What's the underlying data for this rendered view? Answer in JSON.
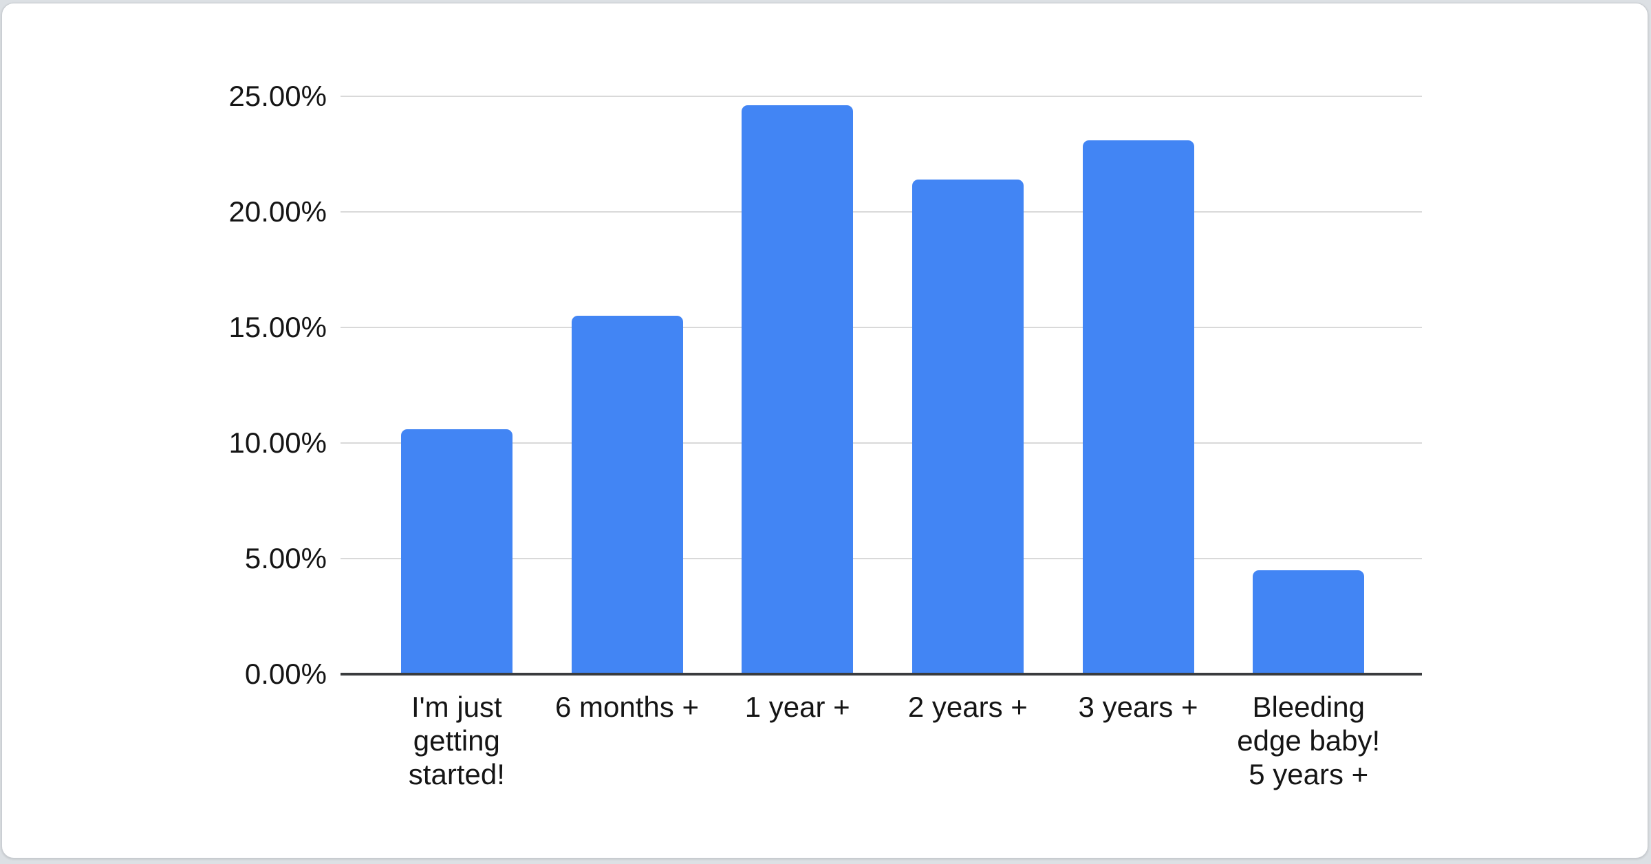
{
  "page": {
    "background_color": "#dce0e4",
    "card_background_color": "#ffffff"
  },
  "chart_data": {
    "type": "bar",
    "title": "",
    "xlabel": "",
    "ylabel": "",
    "categories": [
      "I'm just getting started!",
      "6 months +",
      "1 year +",
      "2 years +",
      "3 years +",
      "Bleeding edge baby! 5 years +"
    ],
    "category_display": [
      "I'm just\ngetting\nstarted!",
      "6 months +",
      "1 year +",
      "2 years +",
      "3 years +",
      "Bleeding\nedge baby!\n5 years +"
    ],
    "values": [
      10.6,
      15.5,
      24.6,
      21.4,
      23.1,
      4.5
    ],
    "value_unit": "%",
    "ylim": [
      0,
      25
    ],
    "yticks": [
      "0.00%",
      "5.00%",
      "10.00%",
      "15.00%",
      "20.00%",
      "25.00%"
    ],
    "grid": true,
    "legend": "none",
    "bar_color": "#4285f4",
    "gridline_color": "#d9d9d9",
    "axis_line_color": "#3a3c3e",
    "label_color": "#151515"
  }
}
